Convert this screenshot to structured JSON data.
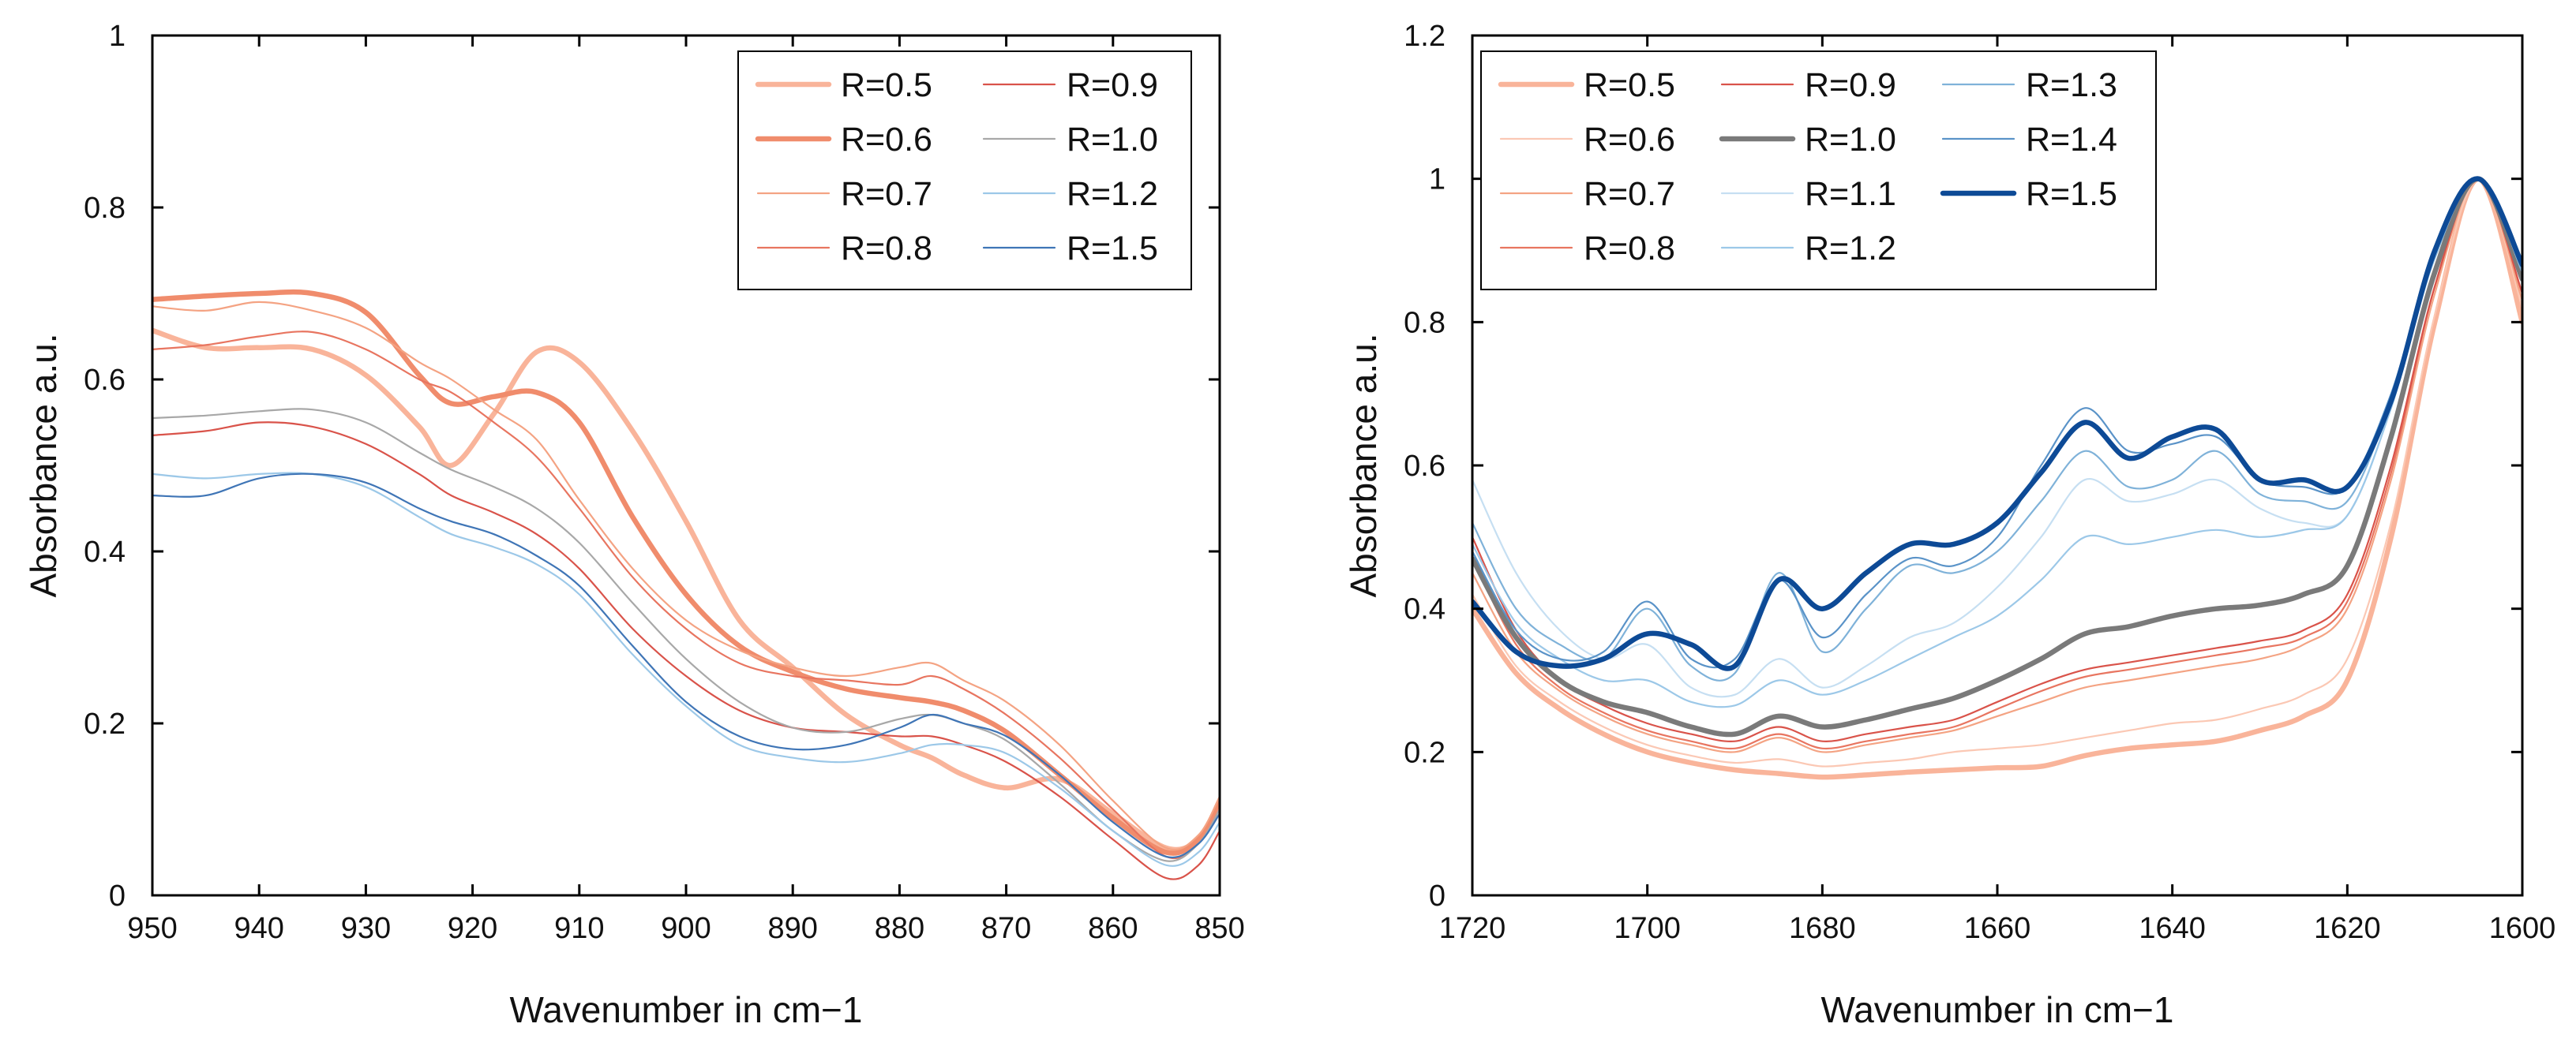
{
  "chart_data": [
    {
      "type": "line",
      "panel": "left",
      "xlabel": "Wavenumber in cm−1",
      "ylabel": "Absorbance a.u.",
      "xlim": [
        950,
        850
      ],
      "ylim": [
        0,
        1
      ],
      "x_reversed": true,
      "xticks": [
        950,
        940,
        930,
        920,
        910,
        900,
        890,
        880,
        870,
        860,
        850
      ],
      "xtick_labels": [
        "950",
        "940",
        "930",
        "920",
        "910",
        "900",
        "890",
        "880",
        "870",
        "860",
        "850"
      ],
      "yticks": [
        0,
        0.2,
        0.4,
        0.6,
        0.8,
        1
      ],
      "ytick_labels": [
        "0",
        "0.2",
        "0.4",
        "0.6",
        "0.8",
        "1"
      ],
      "legend": "top-right",
      "legend_columns": 2,
      "x": [
        950,
        945,
        940,
        935,
        930,
        925,
        922,
        918,
        914,
        910,
        905,
        900,
        895,
        890,
        885,
        880,
        877,
        874,
        870,
        865,
        860,
        855,
        852,
        850
      ],
      "series": [
        {
          "name": "R=0.5",
          "color": "#f9b49a",
          "width": 6.5,
          "values": [
            0.657,
            0.637,
            0.637,
            0.635,
            0.605,
            0.545,
            0.5,
            0.56,
            0.632,
            0.62,
            0.54,
            0.435,
            0.32,
            0.265,
            0.21,
            0.175,
            0.16,
            0.14,
            0.125,
            0.135,
            0.095,
            0.055,
            0.065,
            0.11
          ]
        },
        {
          "name": "R=0.6",
          "color": "#f08c6c",
          "width": 6.5,
          "values": [
            0.693,
            0.697,
            0.7,
            0.7,
            0.678,
            0.605,
            0.572,
            0.58,
            0.585,
            0.55,
            0.44,
            0.35,
            0.29,
            0.26,
            0.24,
            0.23,
            0.225,
            0.215,
            0.19,
            0.14,
            0.09,
            0.05,
            0.065,
            0.11
          ]
        },
        {
          "name": "R=0.7",
          "color": "#f4a383",
          "width": 2.2,
          "values": [
            0.685,
            0.68,
            0.69,
            0.68,
            0.66,
            0.62,
            0.6,
            0.565,
            0.53,
            0.46,
            0.38,
            0.32,
            0.285,
            0.265,
            0.255,
            0.265,
            0.27,
            0.25,
            0.225,
            0.175,
            0.11,
            0.055,
            0.07,
            0.115
          ]
        },
        {
          "name": "R=0.8",
          "color": "#e87560",
          "width": 2.2,
          "values": [
            0.635,
            0.64,
            0.65,
            0.655,
            0.635,
            0.6,
            0.585,
            0.55,
            0.51,
            0.45,
            0.37,
            0.31,
            0.27,
            0.255,
            0.25,
            0.245,
            0.255,
            0.24,
            0.21,
            0.16,
            0.1,
            0.045,
            0.06,
            0.1
          ]
        },
        {
          "name": "R=0.9",
          "color": "#d9534a",
          "width": 2.2,
          "values": [
            0.535,
            0.54,
            0.55,
            0.545,
            0.525,
            0.49,
            0.465,
            0.445,
            0.42,
            0.38,
            0.31,
            0.255,
            0.215,
            0.195,
            0.19,
            0.185,
            0.185,
            0.175,
            0.155,
            0.115,
            0.065,
            0.02,
            0.035,
            0.075
          ]
        },
        {
          "name": "R=1.0",
          "color": "#a8a8a8",
          "width": 2.2,
          "values": [
            0.555,
            0.558,
            0.563,
            0.565,
            0.55,
            0.515,
            0.495,
            0.475,
            0.45,
            0.41,
            0.34,
            0.275,
            0.225,
            0.195,
            0.19,
            0.205,
            0.21,
            0.2,
            0.18,
            0.13,
            0.075,
            0.04,
            0.06,
            0.1
          ]
        },
        {
          "name": "R=1.2",
          "color": "#9cc8e8",
          "width": 2.2,
          "values": [
            0.49,
            0.485,
            0.49,
            0.49,
            0.475,
            0.44,
            0.42,
            0.405,
            0.385,
            0.35,
            0.28,
            0.22,
            0.175,
            0.16,
            0.155,
            0.165,
            0.175,
            0.175,
            0.165,
            0.125,
            0.075,
            0.035,
            0.05,
            0.085
          ]
        },
        {
          "name": "R=1.5",
          "color": "#3f75b6",
          "width": 2.2,
          "values": [
            0.465,
            0.465,
            0.485,
            0.49,
            0.48,
            0.45,
            0.435,
            0.42,
            0.395,
            0.36,
            0.29,
            0.225,
            0.185,
            0.17,
            0.175,
            0.195,
            0.21,
            0.2,
            0.185,
            0.14,
            0.085,
            0.045,
            0.06,
            0.095
          ]
        }
      ]
    },
    {
      "type": "line",
      "panel": "right",
      "xlabel": "Wavenumber in cm−1",
      "ylabel": "Absorbance a.u.",
      "xlim": [
        1720,
        1600
      ],
      "ylim": [
        0,
        1.2
      ],
      "x_reversed": true,
      "xticks": [
        1720,
        1700,
        1680,
        1660,
        1640,
        1620,
        1600
      ],
      "xtick_labels": [
        "1720",
        "1700",
        "1680",
        "1660",
        "1640",
        "1620",
        "1600"
      ],
      "yticks": [
        0,
        0.2,
        0.4,
        0.6,
        0.8,
        1,
        1.2
      ],
      "ytick_labels": [
        "0",
        "0.2",
        "0.4",
        "0.6",
        "0.8",
        "1",
        "1.2"
      ],
      "legend": "top-left",
      "legend_columns": 3,
      "x": [
        1720,
        1715,
        1710,
        1705,
        1700,
        1695,
        1690,
        1685,
        1680,
        1675,
        1670,
        1665,
        1660,
        1655,
        1650,
        1645,
        1640,
        1635,
        1630,
        1625,
        1620,
        1615,
        1610,
        1605,
        1600
      ],
      "series": [
        {
          "name": "R=0.5",
          "color": "#f9b49a",
          "width": 6.5,
          "values": [
            0.4,
            0.31,
            0.26,
            0.225,
            0.2,
            0.185,
            0.175,
            0.17,
            0.165,
            0.168,
            0.172,
            0.175,
            0.178,
            0.18,
            0.195,
            0.205,
            0.21,
            0.215,
            0.23,
            0.25,
            0.3,
            0.5,
            0.8,
            1.0,
            0.8
          ]
        },
        {
          "name": "R=0.6",
          "color": "#fbc8b4",
          "width": 2.2,
          "values": [
            0.42,
            0.32,
            0.27,
            0.235,
            0.21,
            0.195,
            0.185,
            0.19,
            0.18,
            0.185,
            0.19,
            0.2,
            0.205,
            0.21,
            0.22,
            0.23,
            0.24,
            0.245,
            0.26,
            0.28,
            0.33,
            0.52,
            0.81,
            1.0,
            0.82
          ]
        },
        {
          "name": "R=0.7",
          "color": "#f4a383",
          "width": 2.2,
          "values": [
            0.45,
            0.34,
            0.285,
            0.25,
            0.225,
            0.21,
            0.2,
            0.22,
            0.2,
            0.21,
            0.22,
            0.23,
            0.25,
            0.27,
            0.29,
            0.3,
            0.31,
            0.32,
            0.33,
            0.35,
            0.4,
            0.58,
            0.84,
            1.0,
            0.83
          ]
        },
        {
          "name": "R=0.8",
          "color": "#e87560",
          "width": 2.2,
          "values": [
            0.47,
            0.35,
            0.29,
            0.255,
            0.23,
            0.215,
            0.205,
            0.225,
            0.205,
            0.215,
            0.225,
            0.235,
            0.26,
            0.285,
            0.305,
            0.315,
            0.325,
            0.335,
            0.345,
            0.36,
            0.41,
            0.59,
            0.85,
            1.0,
            0.84
          ]
        },
        {
          "name": "R=0.9",
          "color": "#d9534a",
          "width": 2.2,
          "values": [
            0.5,
            0.37,
            0.3,
            0.265,
            0.24,
            0.225,
            0.215,
            0.235,
            0.215,
            0.225,
            0.235,
            0.245,
            0.27,
            0.295,
            0.315,
            0.325,
            0.335,
            0.345,
            0.355,
            0.37,
            0.42,
            0.6,
            0.85,
            1.0,
            0.84
          ]
        },
        {
          "name": "R=1.0",
          "color": "#7a7a7a",
          "width": 6.5,
          "values": [
            0.47,
            0.36,
            0.3,
            0.27,
            0.255,
            0.235,
            0.225,
            0.25,
            0.235,
            0.245,
            0.26,
            0.275,
            0.3,
            0.33,
            0.365,
            0.375,
            0.39,
            0.4,
            0.405,
            0.42,
            0.46,
            0.64,
            0.87,
            1.0,
            0.86
          ]
        },
        {
          "name": "R=1.1",
          "color": "#c6dff2",
          "width": 2.2,
          "values": [
            0.58,
            0.45,
            0.37,
            0.33,
            0.35,
            0.29,
            0.28,
            0.33,
            0.29,
            0.32,
            0.36,
            0.38,
            0.43,
            0.5,
            0.58,
            0.55,
            0.56,
            0.58,
            0.54,
            0.52,
            0.53,
            0.68,
            0.89,
            1.0,
            0.87
          ]
        },
        {
          "name": "R=1.2",
          "color": "#9cc8e8",
          "width": 2.2,
          "values": [
            0.49,
            0.38,
            0.33,
            0.3,
            0.3,
            0.27,
            0.265,
            0.3,
            0.28,
            0.3,
            0.33,
            0.36,
            0.39,
            0.44,
            0.5,
            0.49,
            0.5,
            0.51,
            0.5,
            0.51,
            0.53,
            0.68,
            0.89,
            1.0,
            0.87
          ]
        },
        {
          "name": "R=1.3",
          "color": "#7fb2d9",
          "width": 2.2,
          "values": [
            0.52,
            0.4,
            0.35,
            0.33,
            0.4,
            0.32,
            0.31,
            0.45,
            0.34,
            0.4,
            0.46,
            0.45,
            0.48,
            0.55,
            0.62,
            0.57,
            0.58,
            0.62,
            0.56,
            0.55,
            0.55,
            0.69,
            0.89,
            1.0,
            0.87
          ]
        },
        {
          "name": "R=1.4",
          "color": "#5a93c8",
          "width": 2.2,
          "values": [
            0.48,
            0.37,
            0.33,
            0.34,
            0.41,
            0.33,
            0.33,
            0.44,
            0.36,
            0.42,
            0.47,
            0.46,
            0.5,
            0.6,
            0.68,
            0.62,
            0.63,
            0.64,
            0.58,
            0.57,
            0.57,
            0.7,
            0.9,
            1.0,
            0.88
          ]
        },
        {
          "name": "R=1.5",
          "color": "#0d4a96",
          "width": 6.5,
          "values": [
            0.41,
            0.34,
            0.32,
            0.33,
            0.365,
            0.35,
            0.32,
            0.44,
            0.4,
            0.45,
            0.49,
            0.49,
            0.52,
            0.59,
            0.66,
            0.61,
            0.64,
            0.65,
            0.58,
            0.58,
            0.57,
            0.69,
            0.9,
            1.0,
            0.88
          ]
        }
      ]
    }
  ]
}
